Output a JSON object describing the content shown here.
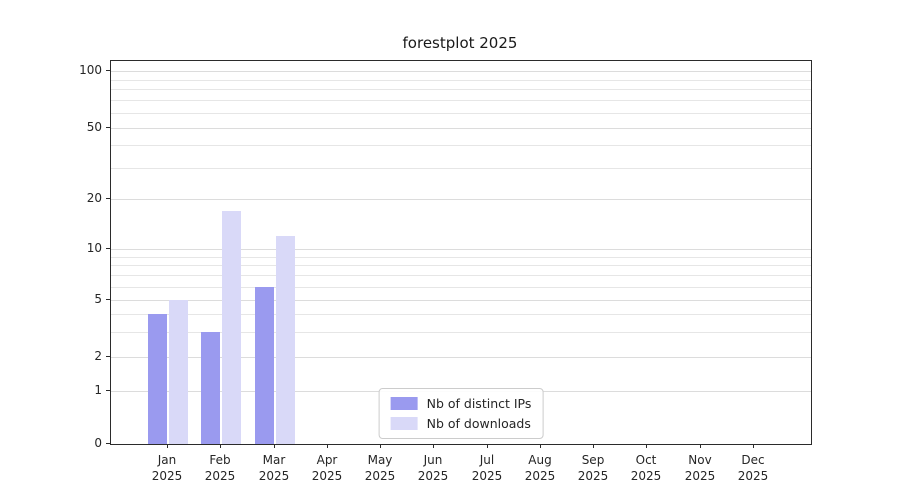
{
  "title": "forestplot 2025",
  "chart_data": {
    "type": "bar",
    "title": "forestplot 2025",
    "x_months": [
      "Jan",
      "Feb",
      "Mar",
      "Apr",
      "May",
      "Jun",
      "Jul",
      "Aug",
      "Sep",
      "Oct",
      "Nov",
      "Dec"
    ],
    "x_year": "2025",
    "series": [
      {
        "name": "Nb of distinct IPs",
        "color": "#9a9aef",
        "values": [
          4,
          3,
          6,
          0,
          0,
          0,
          0,
          0,
          0,
          0,
          0,
          0
        ]
      },
      {
        "name": "Nb of downloads",
        "color": "#d9d9f8",
        "values": [
          5,
          17,
          12,
          0,
          0,
          0,
          0,
          0,
          0,
          0,
          0,
          0
        ]
      }
    ],
    "yscale": "symlog",
    "yticks": [
      0,
      1,
      2,
      5,
      10,
      20,
      50,
      100
    ],
    "minor_gridlines": [
      3,
      4,
      6,
      7,
      8,
      9,
      30,
      40,
      60,
      70,
      80,
      90
    ],
    "ylim": [
      0,
      130
    ],
    "grid": true,
    "legend_position": "lower center"
  }
}
